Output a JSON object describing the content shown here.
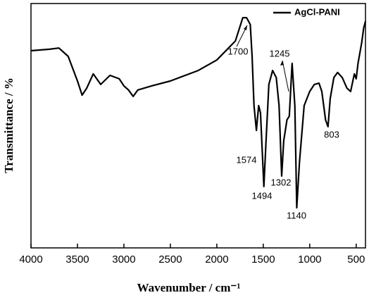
{
  "chart_data": {
    "type": "line",
    "x_label": "Wavenumber / cm⁻¹",
    "y_label": "Transmittance / %",
    "x": [
      4000,
      3800,
      3700,
      3600,
      3500,
      3450,
      3400,
      3330,
      3250,
      3150,
      3050,
      3000,
      2950,
      2900,
      2850,
      2700,
      2500,
      2200,
      2000,
      1800,
      1720,
      1680,
      1660,
      1640,
      1620,
      1600,
      1574,
      1550,
      1530,
      1494,
      1470,
      1440,
      1400,
      1360,
      1330,
      1302,
      1280,
      1245,
      1220,
      1190,
      1160,
      1140,
      1110,
      1060,
      1000,
      950,
      900,
      870,
      830,
      803,
      780,
      740,
      700,
      650,
      600,
      560,
      520,
      500,
      480,
      440,
      420,
      400
    ],
    "series": [
      {
        "name": "AgCl-PANI",
        "color": "#000000",
        "values": [
          80.7,
          81.3,
          81.8,
          78.4,
          68.3,
          62.5,
          65.4,
          71.2,
          66.9,
          70.6,
          69.2,
          66.3,
          64.6,
          62.0,
          64.6,
          66.3,
          68.3,
          72.6,
          76.9,
          84.7,
          94.2,
          94.2,
          92.8,
          91.4,
          78.4,
          58.2,
          48.1,
          58.2,
          55.3,
          25.1,
          43.8,
          66.9,
          72.6,
          69.7,
          58.2,
          29.4,
          43.8,
          52.4,
          53.9,
          75.5,
          58.2,
          16.4,
          35.2,
          58.2,
          64.0,
          66.9,
          67.4,
          64.0,
          52.4,
          49.6,
          61.1,
          69.7,
          71.8,
          69.7,
          65.4,
          64.0,
          71.2,
          69.2,
          75.5,
          84.1,
          89.9,
          92.8
        ]
      }
    ],
    "xlim": [
      4000,
      400
    ],
    "ylim": [
      0,
      100
    ],
    "xticks": [
      4000,
      3500,
      3000,
      2500,
      2000,
      1500,
      1000,
      500
    ],
    "annotations": [
      {
        "text": "1700"
      },
      {
        "text": "1245"
      },
      {
        "text": "1574"
      },
      {
        "text": "1494"
      },
      {
        "text": "1302"
      },
      {
        "text": "1140"
      },
      {
        "text": "803"
      }
    ],
    "legend": "upper right"
  }
}
